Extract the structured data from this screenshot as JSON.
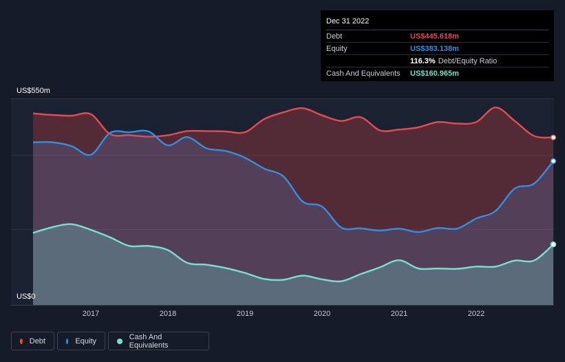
{
  "tooltip": {
    "date": "Dec 31 2022",
    "debt_label": "Debt",
    "debt_value": "US$445.618m",
    "equity_label": "Equity",
    "equity_value": "US$383.138m",
    "ratio_pct": "116.3%",
    "ratio_label": "Debt/Equity Ratio",
    "cash_label": "Cash And Equivalents",
    "cash_value": "US$160.965m"
  },
  "legend": {
    "debt": "Debt",
    "equity": "Equity",
    "cash": "Cash And Equivalents"
  },
  "colors": {
    "debt": "#e5484d",
    "equity": "#2d8fde",
    "cash": "#71e0cc",
    "background": "#151b27"
  },
  "chart_data": {
    "type": "area",
    "title": "",
    "ylabel_top": "US$550m",
    "ylabel_bottom": "US$0",
    "ylim": [
      0,
      550
    ],
    "xlim": [
      2016.25,
      2023.0
    ],
    "x_ticks": [
      "2017",
      "2018",
      "2019",
      "2020",
      "2021",
      "2022"
    ],
    "series": [
      {
        "name": "Debt",
        "points": [
          [
            2016.25,
            510
          ],
          [
            2016.5,
            506
          ],
          [
            2016.75,
            504
          ],
          [
            2017.0,
            508
          ],
          [
            2017.25,
            455
          ],
          [
            2017.5,
            452
          ],
          [
            2017.75,
            448
          ],
          [
            2018.0,
            452
          ],
          [
            2018.25,
            463
          ],
          [
            2018.5,
            463
          ],
          [
            2018.75,
            462
          ],
          [
            2019.0,
            460
          ],
          [
            2019.25,
            495
          ],
          [
            2019.5,
            513
          ],
          [
            2019.75,
            524
          ],
          [
            2020.0,
            505
          ],
          [
            2020.25,
            490
          ],
          [
            2020.5,
            500
          ],
          [
            2020.75,
            465
          ],
          [
            2021.0,
            467
          ],
          [
            2021.25,
            473
          ],
          [
            2021.5,
            487
          ],
          [
            2021.75,
            483
          ],
          [
            2022.0,
            487
          ],
          [
            2022.25,
            526
          ],
          [
            2022.5,
            490
          ],
          [
            2022.75,
            450
          ],
          [
            2023.0,
            446
          ]
        ]
      },
      {
        "name": "Equity",
        "points": [
          [
            2016.25,
            433
          ],
          [
            2016.5,
            433
          ],
          [
            2016.75,
            423
          ],
          [
            2017.0,
            400
          ],
          [
            2017.25,
            458
          ],
          [
            2017.5,
            460
          ],
          [
            2017.75,
            462
          ],
          [
            2018.0,
            425
          ],
          [
            2018.25,
            447
          ],
          [
            2018.5,
            417
          ],
          [
            2018.75,
            410
          ],
          [
            2019.0,
            392
          ],
          [
            2019.25,
            363
          ],
          [
            2019.5,
            342
          ],
          [
            2019.75,
            275
          ],
          [
            2020.0,
            262
          ],
          [
            2020.25,
            206
          ],
          [
            2020.5,
            204
          ],
          [
            2020.75,
            198
          ],
          [
            2021.0,
            203
          ],
          [
            2021.25,
            194
          ],
          [
            2021.5,
            205
          ],
          [
            2021.75,
            203
          ],
          [
            2022.0,
            230
          ],
          [
            2022.25,
            250
          ],
          [
            2022.5,
            310
          ],
          [
            2022.75,
            323
          ],
          [
            2023.0,
            383
          ]
        ]
      },
      {
        "name": "Cash And Equivalents",
        "points": [
          [
            2016.25,
            192
          ],
          [
            2016.5,
            207
          ],
          [
            2016.75,
            215
          ],
          [
            2017.0,
            200
          ],
          [
            2017.25,
            180
          ],
          [
            2017.5,
            157
          ],
          [
            2017.75,
            157
          ],
          [
            2018.0,
            146
          ],
          [
            2018.25,
            112
          ],
          [
            2018.5,
            107
          ],
          [
            2018.75,
            98
          ],
          [
            2019.0,
            85
          ],
          [
            2019.25,
            69
          ],
          [
            2019.5,
            67
          ],
          [
            2019.75,
            78
          ],
          [
            2020.0,
            68
          ],
          [
            2020.25,
            63
          ],
          [
            2020.5,
            82
          ],
          [
            2020.75,
            100
          ],
          [
            2021.0,
            119
          ],
          [
            2021.25,
            97
          ],
          [
            2021.5,
            97
          ],
          [
            2021.75,
            96
          ],
          [
            2022.0,
            102
          ],
          [
            2022.25,
            102
          ],
          [
            2022.5,
            118
          ],
          [
            2022.75,
            118
          ],
          [
            2023.0,
            161
          ]
        ]
      }
    ]
  }
}
